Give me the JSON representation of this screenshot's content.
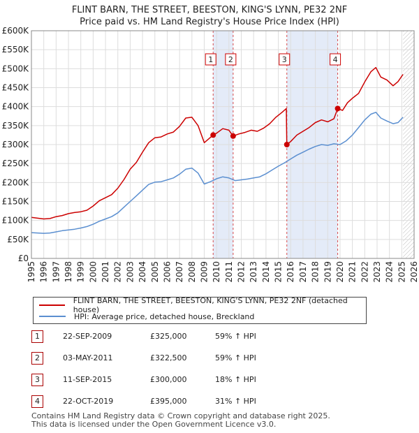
{
  "title_line1": "FLINT BARN, THE STREET, BEESTON, KING'S LYNN, PE32 2NF",
  "title_line2": "Price paid vs. HM Land Registry's House Price Index (HPI)",
  "chart_data": {
    "type": "line",
    "xlim": [
      1995,
      2026
    ],
    "ylim": [
      0,
      600000
    ],
    "x_ticks": [
      1995,
      1996,
      1997,
      1998,
      1999,
      2000,
      2001,
      2002,
      2003,
      2004,
      2005,
      2006,
      2007,
      2008,
      2009,
      2010,
      2011,
      2012,
      2013,
      2014,
      2015,
      2016,
      2017,
      2018,
      2019,
      2020,
      2021,
      2022,
      2023,
      2024,
      2025,
      2026
    ],
    "y_ticks": [
      {
        "value": 0,
        "label": "£0"
      },
      {
        "value": 50000,
        "label": "£50K"
      },
      {
        "value": 100000,
        "label": "£100K"
      },
      {
        "value": 150000,
        "label": "£150K"
      },
      {
        "value": 200000,
        "label": "£200K"
      },
      {
        "value": 250000,
        "label": "£250K"
      },
      {
        "value": 300000,
        "label": "£300K"
      },
      {
        "value": 350000,
        "label": "£350K"
      },
      {
        "value": 400000,
        "label": "£400K"
      },
      {
        "value": 450000,
        "label": "£450K"
      },
      {
        "value": 500000,
        "label": "£500K"
      },
      {
        "value": 550000,
        "label": "£550K"
      },
      {
        "value": 600000,
        "label": "£600K"
      }
    ],
    "shaded_periods": [
      [
        2009.72,
        2011.34
      ],
      [
        2015.69,
        2019.81
      ]
    ],
    "hatched_from": 2025.1,
    "series": [
      {
        "name": "FLINT BARN, THE STREET, BEESTON, KING'S LYNN, PE32 2NF (detached house)",
        "color": "#cc0000",
        "points": [
          [
            1995.0,
            108000
          ],
          [
            1995.5,
            106000
          ],
          [
            1996.0,
            104000
          ],
          [
            1996.5,
            105000
          ],
          [
            1997.0,
            110000
          ],
          [
            1997.5,
            113000
          ],
          [
            1998.0,
            118000
          ],
          [
            1998.5,
            121000
          ],
          [
            1999.0,
            123000
          ],
          [
            1999.5,
            127000
          ],
          [
            2000.0,
            138000
          ],
          [
            2000.5,
            152000
          ],
          [
            2001.0,
            160000
          ],
          [
            2001.5,
            168000
          ],
          [
            2002.0,
            185000
          ],
          [
            2002.5,
            208000
          ],
          [
            2003.0,
            235000
          ],
          [
            2003.5,
            253000
          ],
          [
            2004.0,
            280000
          ],
          [
            2004.5,
            305000
          ],
          [
            2005.0,
            318000
          ],
          [
            2005.5,
            320000
          ],
          [
            2006.0,
            328000
          ],
          [
            2006.5,
            333000
          ],
          [
            2007.0,
            348000
          ],
          [
            2007.5,
            370000
          ],
          [
            2008.0,
            372000
          ],
          [
            2008.5,
            350000
          ],
          [
            2009.0,
            305000
          ],
          [
            2009.72,
            325000
          ],
          [
            2010.0,
            330000
          ],
          [
            2010.5,
            342000
          ],
          [
            2011.0,
            338000
          ],
          [
            2011.34,
            322500
          ],
          [
            2011.8,
            328000
          ],
          [
            2012.3,
            332000
          ],
          [
            2012.8,
            338000
          ],
          [
            2013.3,
            335000
          ],
          [
            2013.8,
            343000
          ],
          [
            2014.3,
            355000
          ],
          [
            2014.8,
            372000
          ],
          [
            2015.3,
            385000
          ],
          [
            2015.65,
            395000
          ],
          [
            2015.69,
            300000
          ],
          [
            2016.0,
            308000
          ],
          [
            2016.5,
            325000
          ],
          [
            2017.0,
            335000
          ],
          [
            2017.5,
            345000
          ],
          [
            2018.0,
            358000
          ],
          [
            2018.5,
            365000
          ],
          [
            2019.0,
            360000
          ],
          [
            2019.5,
            368000
          ],
          [
            2019.81,
            395000
          ],
          [
            2020.2,
            390000
          ],
          [
            2020.6,
            410000
          ],
          [
            2021.0,
            422000
          ],
          [
            2021.5,
            435000
          ],
          [
            2022.0,
            465000
          ],
          [
            2022.5,
            492000
          ],
          [
            2022.9,
            503000
          ],
          [
            2023.3,
            478000
          ],
          [
            2023.8,
            470000
          ],
          [
            2024.3,
            455000
          ],
          [
            2024.7,
            466000
          ],
          [
            2025.1,
            485000
          ]
        ]
      },
      {
        "name": "HPI: Average price, detached house, Breckland",
        "color": "#5b8fd0",
        "points": [
          [
            1995.0,
            68000
          ],
          [
            1995.5,
            67000
          ],
          [
            1996.0,
            66000
          ],
          [
            1996.5,
            67000
          ],
          [
            1997.0,
            70000
          ],
          [
            1997.5,
            73000
          ],
          [
            1998.0,
            75000
          ],
          [
            1998.5,
            77000
          ],
          [
            1999.0,
            80000
          ],
          [
            1999.5,
            84000
          ],
          [
            2000.0,
            90000
          ],
          [
            2000.5,
            98000
          ],
          [
            2001.0,
            104000
          ],
          [
            2001.5,
            110000
          ],
          [
            2002.0,
            120000
          ],
          [
            2002.5,
            135000
          ],
          [
            2003.0,
            150000
          ],
          [
            2003.5,
            165000
          ],
          [
            2004.0,
            180000
          ],
          [
            2004.5,
            195000
          ],
          [
            2005.0,
            201000
          ],
          [
            2005.5,
            202000
          ],
          [
            2006.0,
            207000
          ],
          [
            2006.5,
            212000
          ],
          [
            2007.0,
            222000
          ],
          [
            2007.5,
            235000
          ],
          [
            2008.0,
            238000
          ],
          [
            2008.5,
            225000
          ],
          [
            2009.0,
            196000
          ],
          [
            2009.5,
            202000
          ],
          [
            2010.0,
            210000
          ],
          [
            2010.5,
            215000
          ],
          [
            2011.0,
            212000
          ],
          [
            2011.5,
            205000
          ],
          [
            2012.0,
            207000
          ],
          [
            2012.5,
            209000
          ],
          [
            2013.0,
            212000
          ],
          [
            2013.5,
            215000
          ],
          [
            2014.0,
            223000
          ],
          [
            2014.5,
            233000
          ],
          [
            2015.0,
            243000
          ],
          [
            2015.5,
            252000
          ],
          [
            2016.0,
            262000
          ],
          [
            2016.5,
            272000
          ],
          [
            2017.0,
            280000
          ],
          [
            2017.5,
            288000
          ],
          [
            2018.0,
            295000
          ],
          [
            2018.5,
            300000
          ],
          [
            2019.0,
            298000
          ],
          [
            2019.5,
            302000
          ],
          [
            2020.0,
            300000
          ],
          [
            2020.5,
            310000
          ],
          [
            2021.0,
            325000
          ],
          [
            2021.5,
            345000
          ],
          [
            2022.0,
            365000
          ],
          [
            2022.5,
            380000
          ],
          [
            2022.9,
            385000
          ],
          [
            2023.3,
            370000
          ],
          [
            2023.8,
            362000
          ],
          [
            2024.3,
            355000
          ],
          [
            2024.7,
            358000
          ],
          [
            2025.1,
            372000
          ]
        ]
      }
    ],
    "sale_markers": [
      {
        "num": "1",
        "x": 2009.72,
        "y": 325000
      },
      {
        "num": "2",
        "x": 2011.34,
        "y": 322500
      },
      {
        "num": "3",
        "x": 2015.69,
        "y": 300000
      },
      {
        "num": "4",
        "x": 2019.81,
        "y": 395000
      }
    ]
  },
  "legend": {
    "property_label": "FLINT BARN, THE STREET, BEESTON, KING'S LYNN, PE32 2NF (detached house)",
    "hpi_label": "HPI: Average price, detached house, Breckland"
  },
  "sales": [
    {
      "num": "1",
      "date": "22-SEP-2009",
      "price": "£325,000",
      "hpi": "59% ↑ HPI"
    },
    {
      "num": "2",
      "date": "03-MAY-2011",
      "price": "£322,500",
      "hpi": "59% ↑ HPI"
    },
    {
      "num": "3",
      "date": "11-SEP-2015",
      "price": "£300,000",
      "hpi": "18% ↑ HPI"
    },
    {
      "num": "4",
      "date": "22-OCT-2019",
      "price": "£395,000",
      "hpi": "31% ↑ HPI"
    }
  ],
  "footer": {
    "line1": "Contains HM Land Registry data © Crown copyright and database right 2025.",
    "line2": "This data is licensed under the Open Government Licence v3.0."
  },
  "colors": {
    "property": "#cc0000",
    "hpi": "#5b8fd0",
    "shade": "#e4ebf8",
    "grid": "#dddddd"
  }
}
